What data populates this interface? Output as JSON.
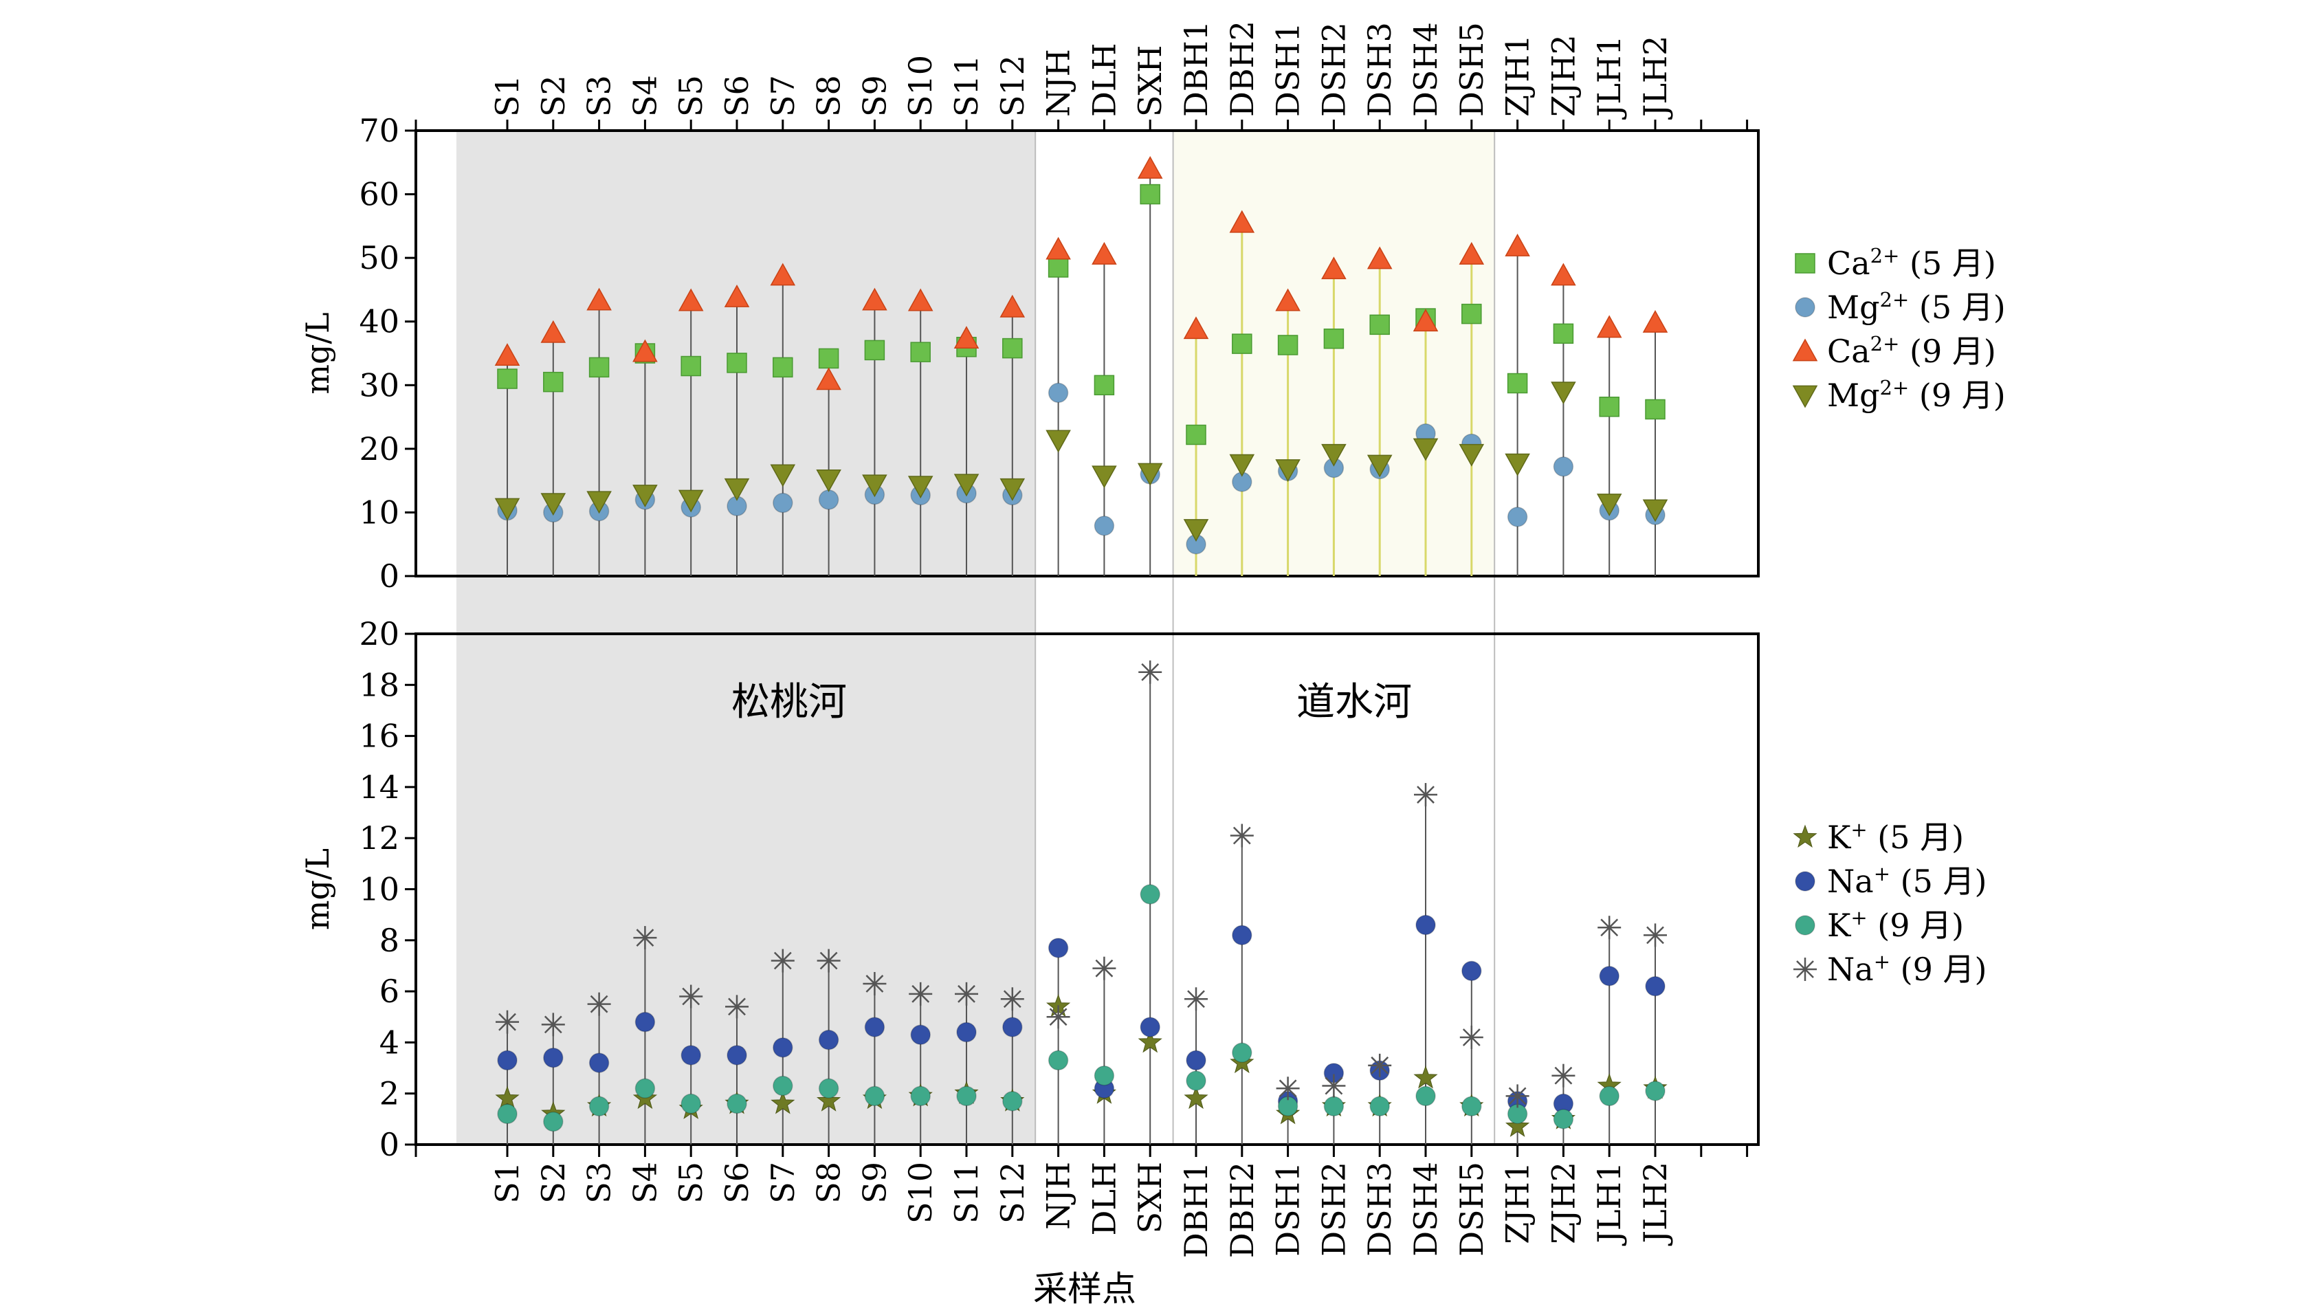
{
  "chart_data": {
    "type": "scatter",
    "categories": [
      "S1",
      "S2",
      "S3",
      "S4",
      "S5",
      "S6",
      "S7",
      "S8",
      "S9",
      "S10",
      "S11",
      "S12",
      "NJH",
      "DLH",
      "SXH",
      "DBH1",
      "DBH2",
      "DSH1",
      "DSH2",
      "DSH3",
      "DSH4",
      "DSH5",
      "ZJH1",
      "ZJH2",
      "JLH1",
      "JLH2"
    ],
    "xlabel": "采样点",
    "region_labels": [
      "松桃河",
      "道水河"
    ],
    "panels": [
      {
        "ylabel": "mg/L",
        "ylim": [
          0,
          70
        ],
        "yticks": [
          0,
          10,
          20,
          30,
          40,
          50,
          60,
          70
        ],
        "yticks_text": [
          "0",
          "10",
          "20",
          "30",
          "40",
          "50",
          "60",
          "70"
        ],
        "series": [
          {
            "name": "Ca²⁺ (5 月)",
            "marker": "square",
            "color": "#6abf4b",
            "values": [
              31,
              30.5,
              32.8,
              35,
              33,
              33.5,
              32.8,
              34.2,
              35.5,
              35.2,
              36,
              35.8,
              48.5,
              30,
              60,
              22.2,
              36.5,
              36.3,
              37.3,
              39.5,
              40.5,
              41.2,
              30.3,
              38.1,
              26.6,
              26.2
            ]
          },
          {
            "name": "Mg²⁺ (5 月)",
            "marker": "circle",
            "color": "#6e9fc6",
            "values": [
              10.3,
              10,
              10.2,
              12,
              10.8,
              11,
              11.5,
              12,
              12.8,
              12.7,
              13,
              12.7,
              28.8,
              7.9,
              16,
              5,
              14.8,
              16.5,
              17,
              16.8,
              22.4,
              20.8,
              9.3,
              17.2,
              10.3,
              9.6
            ]
          },
          {
            "name": "Ca²⁺ (9 月)",
            "marker": "triangle-up",
            "color": "#ee5a2b",
            "values": [
              34.6,
              38.2,
              43.3,
              35.2,
              43.2,
              43.8,
              47.2,
              30.8,
              43.3,
              43.2,
              37.3,
              42.2,
              51.3,
              50.5,
              64,
              38.8,
              55.5,
              43.2,
              48.2,
              49.8,
              40,
              50.5,
              51.8,
              47.2,
              39,
              39.8
            ]
          },
          {
            "name": "Mg²⁺ (9 月)",
            "marker": "triangle-down",
            "color": "#7f8a22",
            "values": [
              10.7,
              11.5,
              11.8,
              12.8,
              12,
              13.8,
              16,
              15.2,
              14.4,
              14.2,
              14.5,
              13.8,
              21.4,
              15.8,
              16.2,
              7.4,
              17.6,
              16.8,
              19.2,
              17.5,
              20.1,
              19.2,
              17.7,
              29,
              11.4,
              10.5
            ]
          }
        ]
      },
      {
        "ylabel": "mg/L",
        "ylim": [
          0,
          20
        ],
        "yticks": [
          0,
          2,
          4,
          6,
          8,
          10,
          12,
          14,
          16,
          18,
          20
        ],
        "yticks_text": [
          "0",
          "2",
          "4",
          "6",
          "8",
          "10",
          "12",
          "14",
          "16",
          "18",
          "20"
        ],
        "series": [
          {
            "name": "K⁺ (5 月)",
            "marker": "star",
            "color": "#6e7a24",
            "values": [
              1.8,
              1.2,
              1.5,
              1.8,
              1.4,
              1.6,
              1.6,
              1.7,
              1.8,
              1.9,
              2,
              1.7,
              5.4,
              2,
              4,
              1.8,
              3.2,
              1.2,
              1.5,
              1.5,
              2.6,
              1.5,
              0.7,
              1,
              2.3,
              2.2
            ]
          },
          {
            "name": "Na⁺ (5 月)",
            "marker": "circle",
            "color": "#3350a6",
            "values": [
              3.3,
              3.4,
              3.2,
              4.8,
              3.5,
              3.5,
              3.8,
              4.1,
              4.6,
              4.3,
              4.4,
              4.6,
              7.7,
              2.2,
              4.6,
              3.3,
              8.2,
              1.7,
              2.8,
              2.9,
              8.6,
              6.8,
              1.7,
              1.6,
              6.6,
              6.2
            ]
          },
          {
            "name": "K⁺ (9 月)",
            "marker": "circle",
            "color": "#3fa98a",
            "values": [
              1.2,
              0.9,
              1.5,
              2.2,
              1.6,
              1.6,
              2.3,
              2.2,
              1.9,
              1.9,
              1.9,
              1.7,
              3.3,
              2.7,
              9.8,
              2.5,
              3.6,
              1.5,
              1.5,
              1.5,
              1.9,
              1.5,
              1.2,
              1,
              1.9,
              2.1
            ]
          },
          {
            "name": "Na⁺ (9 月)",
            "marker": "asterisk",
            "color": "#555555",
            "values": [
              4.8,
              4.7,
              5.5,
              8.1,
              5.8,
              5.4,
              7.2,
              7.2,
              6.3,
              5.9,
              5.9,
              5.7,
              5,
              6.9,
              18.5,
              5.7,
              12.1,
              2.2,
              2.3,
              3.1,
              13.7,
              4.2,
              1.9,
              2.7,
              8.5,
              8.2
            ]
          }
        ]
      }
    ],
    "grid": false,
    "legend": "right"
  }
}
